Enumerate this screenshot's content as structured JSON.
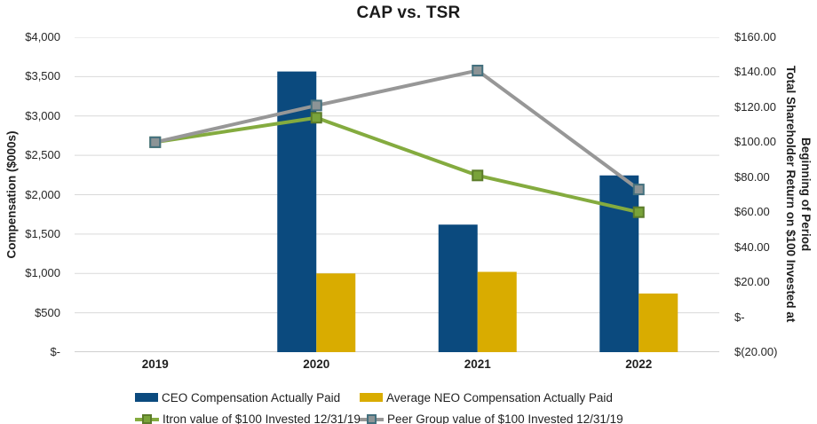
{
  "title": "CAP vs. TSR",
  "left_axis": {
    "title": "Compensation ($000s)",
    "ticks": [
      "$4,000",
      "$3,500",
      "$3,000",
      "$2,500",
      "$2,000",
      "$1,500",
      "$1,000",
      "$500",
      "$-"
    ],
    "min": 0,
    "max": 4000
  },
  "right_axis": {
    "title_line1": "Total Shareholder Return on $100 Invested at",
    "title_line2": "Beginning of Period",
    "ticks": [
      "$160.00",
      "$140.00",
      "$120.00",
      "$100.00",
      "$80.00",
      "$60.00",
      "$40.00",
      "$20.00",
      "$-",
      "$(20.00)"
    ],
    "min": -20,
    "max": 160
  },
  "colors": {
    "ceo_bar": "#0B4A7E",
    "neo_bar": "#D9AC00",
    "itron_line": "#84AB3F",
    "itron_marker_fill": "#79A33A",
    "itron_marker_border": "#5C7C2A",
    "peer_line": "#979797",
    "peer_marker_fill": "#8C9496",
    "peer_marker_border": "#43707E",
    "gridline": "#D9D9D9",
    "baseline": "#BFBFBF"
  },
  "chart_data": {
    "type": "combo (grouped bar + line)",
    "categories": [
      "2019",
      "2020",
      "2021",
      "2022"
    ],
    "series": [
      {
        "name": "CEO Compensation Actually Paid",
        "type": "bar",
        "axis": "left",
        "color": "#0B4A7E",
        "values": [
          null,
          3565,
          1620,
          2245
        ]
      },
      {
        "name": "Average NEO Compensation Actually Paid",
        "type": "bar",
        "axis": "left",
        "color": "#D9AC00",
        "values": [
          null,
          1000,
          1020,
          745
        ]
      },
      {
        "name": "Itron value of $100 Invested 12/31/19",
        "type": "line",
        "axis": "right",
        "color": "#84AB3F",
        "marker_fill": "#79A33A",
        "marker_border": "#5C7C2A",
        "values": [
          100,
          114,
          81,
          60
        ]
      },
      {
        "name": "Peer Group value of $100 Invested 12/31/19",
        "type": "line",
        "axis": "right",
        "color": "#979797",
        "marker_fill": "#8C9496",
        "marker_border": "#43707E",
        "values": [
          100,
          121,
          141,
          73
        ]
      }
    ],
    "title": "CAP vs. TSR",
    "xlabel": "",
    "ylabel_left": "Compensation ($000s)",
    "ylabel_right": "Total Shareholder Return on $100 Invested at Beginning of Period",
    "ylim_left": [
      0,
      4000
    ],
    "ylim_right": [
      -20,
      160
    ],
    "grid": "horizontal gridlines at every $500 of left axis",
    "legend_position": "bottom, two columns"
  }
}
